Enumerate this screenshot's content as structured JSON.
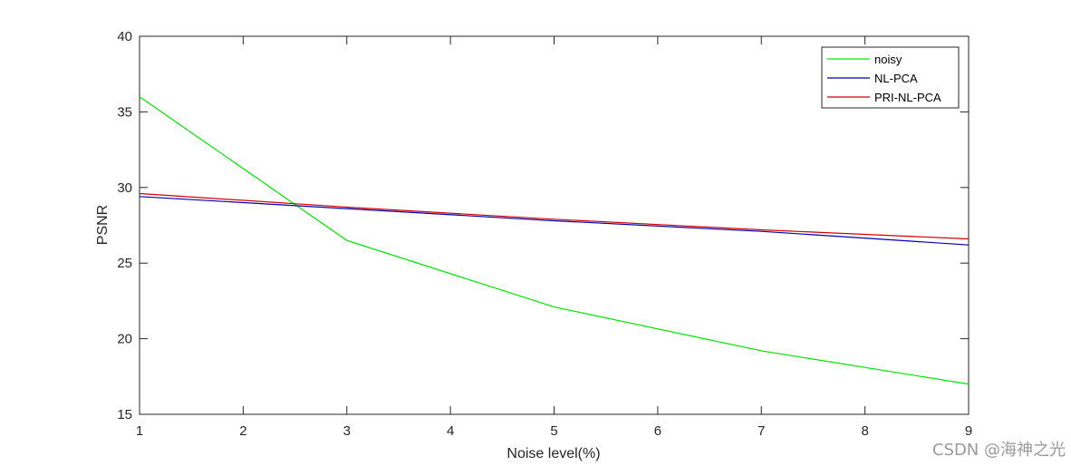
{
  "chart_data": {
    "type": "line",
    "title": "",
    "xlabel": "Noise level(%)",
    "ylabel": "PSNR",
    "xlim": [
      1,
      9
    ],
    "ylim": [
      15,
      40
    ],
    "xticks": [
      1,
      2,
      3,
      4,
      5,
      6,
      7,
      8,
      9
    ],
    "yticks": [
      15,
      20,
      25,
      30,
      35,
      40
    ],
    "grid": false,
    "legend_position": "top-right",
    "x": [
      1,
      3,
      5,
      7,
      9
    ],
    "series": [
      {
        "name": "noisy",
        "color": "#00e600",
        "values": [
          36.0,
          26.5,
          22.1,
          19.2,
          17.0
        ]
      },
      {
        "name": "NL-PCA",
        "color": "#0000b3",
        "values": [
          29.4,
          28.6,
          27.8,
          27.1,
          26.2
        ]
      },
      {
        "name": "PRI-NL-PCA",
        "color": "#d40000",
        "values": [
          29.6,
          28.7,
          27.9,
          27.2,
          26.6
        ]
      }
    ]
  },
  "watermark": "CSDN @海神之光"
}
